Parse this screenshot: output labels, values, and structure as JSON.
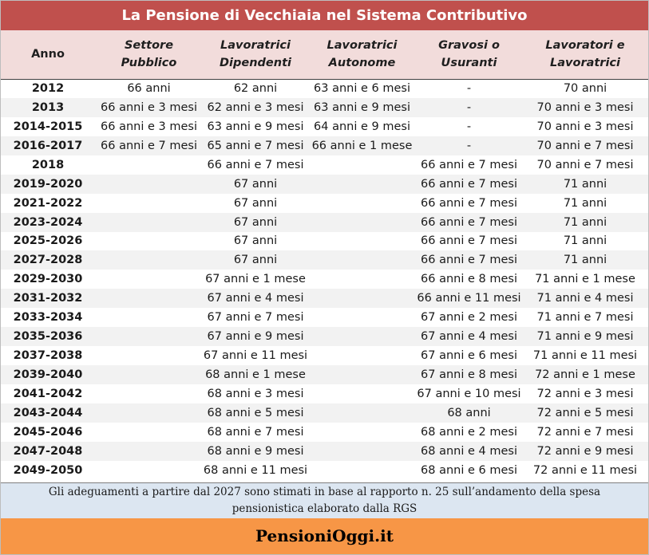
{
  "title": "La Pensione di Vecchiaia nel Sistema Contributivo",
  "columns": [
    {
      "line1": "Anno",
      "line2": ""
    },
    {
      "line1": "Settore",
      "line2": "Pubblico"
    },
    {
      "line1": "Lavoratrici",
      "line2": "Dipendenti"
    },
    {
      "line1": "Lavoratrici",
      "line2": "Autonome"
    },
    {
      "line1": "Gravosi o",
      "line2": "Usuranti"
    },
    {
      "line1": "Lavoratori e",
      "line2": "Lavoratrici"
    }
  ],
  "rows": [
    {
      "year": "2012",
      "cells": [
        {
          "text": "66 anni"
        },
        {
          "text": "62 anni"
        },
        {
          "text": "63 anni e 6 mesi"
        },
        {
          "text": "-"
        },
        {
          "text": "70 anni"
        }
      ]
    },
    {
      "year": "2013",
      "cells": [
        {
          "text": "66 anni e 3 mesi"
        },
        {
          "text": "62 anni e 3 mesi"
        },
        {
          "text": "63 anni e 9 mesi"
        },
        {
          "text": "-"
        },
        {
          "text": "70 anni e 3 mesi"
        }
      ]
    },
    {
      "year": "2014-2015",
      "cells": [
        {
          "text": "66 anni e 3 mesi"
        },
        {
          "text": "63 anni e 9 mesi"
        },
        {
          "text": "64 anni e 9 mesi"
        },
        {
          "text": "-"
        },
        {
          "text": "70 anni e 3 mesi"
        }
      ]
    },
    {
      "year": "2016-2017",
      "cells": [
        {
          "text": "66 anni e 7 mesi"
        },
        {
          "text": "65 anni e 7 mesi"
        },
        {
          "text": "66 anni e 1 mese"
        },
        {
          "text": "-"
        },
        {
          "text": "70 anni e 7 mesi"
        }
      ]
    },
    {
      "year": "2018",
      "cells": [
        {
          "text": "66 anni e 7 mesi",
          "span": 3
        },
        {
          "text": "66 anni e 7 mesi"
        },
        {
          "text": "70 anni e 7 mesi"
        }
      ]
    },
    {
      "year": "2019-2020",
      "cells": [
        {
          "text": "67 anni",
          "span": 3
        },
        {
          "text": "66 anni e 7 mesi"
        },
        {
          "text": "71 anni"
        }
      ]
    },
    {
      "year": "2021-2022",
      "cells": [
        {
          "text": "67 anni",
          "span": 3
        },
        {
          "text": "66 anni e 7 mesi"
        },
        {
          "text": "71 anni"
        }
      ]
    },
    {
      "year": "2023-2024",
      "cells": [
        {
          "text": "67 anni",
          "span": 3
        },
        {
          "text": "66 anni e 7 mesi"
        },
        {
          "text": "71 anni"
        }
      ]
    },
    {
      "year": "2025-2026",
      "cells": [
        {
          "text": "67 anni",
          "span": 3
        },
        {
          "text": "66 anni e 7 mesi"
        },
        {
          "text": "71 anni"
        }
      ]
    },
    {
      "year": "2027-2028",
      "cells": [
        {
          "text": "67 anni",
          "span": 3
        },
        {
          "text": "66 anni e 7 mesi"
        },
        {
          "text": "71 anni"
        }
      ]
    },
    {
      "year": "2029-2030",
      "cells": [
        {
          "text": "67 anni e 1 mese",
          "span": 3
        },
        {
          "text": "66 anni e 8 mesi"
        },
        {
          "text": "71 anni e 1 mese"
        }
      ]
    },
    {
      "year": "2031-2032",
      "cells": [
        {
          "text": "67 anni e 4 mesi",
          "span": 3
        },
        {
          "text": "66 anni e 11 mesi"
        },
        {
          "text": "71 anni e 4 mesi"
        }
      ]
    },
    {
      "year": "2033-2034",
      "cells": [
        {
          "text": "67 anni e 7 mesi",
          "span": 3
        },
        {
          "text": "67 anni e 2 mesi"
        },
        {
          "text": "71 anni e 7 mesi"
        }
      ]
    },
    {
      "year": "2035-2036",
      "cells": [
        {
          "text": "67 anni e 9 mesi",
          "span": 3
        },
        {
          "text": "67 anni e 4 mesi"
        },
        {
          "text": "71 anni e 9 mesi"
        }
      ]
    },
    {
      "year": "2037-2038",
      "cells": [
        {
          "text": "67 anni e 11 mesi",
          "span": 3
        },
        {
          "text": "67 anni e 6 mesi"
        },
        {
          "text": "71 anni e 11 mesi"
        }
      ]
    },
    {
      "year": "2039-2040",
      "cells": [
        {
          "text": "68 anni e 1 mese",
          "span": 3
        },
        {
          "text": "67 anni e 8 mesi"
        },
        {
          "text": "72 anni e 1 mese"
        }
      ]
    },
    {
      "year": "2041-2042",
      "cells": [
        {
          "text": "68 anni e 3 mesi",
          "span": 3
        },
        {
          "text": "67 anni e 10 mesi"
        },
        {
          "text": "72 anni e 3 mesi"
        }
      ]
    },
    {
      "year": "2043-2044",
      "cells": [
        {
          "text": "68 anni e 5 mesi",
          "span": 3
        },
        {
          "text": "68 anni"
        },
        {
          "text": "72 anni e 5 mesi"
        }
      ]
    },
    {
      "year": "2045-2046",
      "cells": [
        {
          "text": "68 anni e 7 mesi",
          "span": 3
        },
        {
          "text": "68 anni e 2 mesi"
        },
        {
          "text": "72 anni e 7 mesi"
        }
      ]
    },
    {
      "year": "2047-2048",
      "cells": [
        {
          "text": "68 anni e 9 mesi",
          "span": 3
        },
        {
          "text": "68 anni e 4 mesi"
        },
        {
          "text": "72 anni e 9 mesi"
        }
      ]
    },
    {
      "year": "2049-2050",
      "cells": [
        {
          "text": "68 anni e 11 mesi",
          "span": 3
        },
        {
          "text": "68 anni e 6 mesi"
        },
        {
          "text": "72 anni e 11 mesi"
        }
      ]
    }
  ],
  "note": {
    "line1": "Gli adeguamenti a partire dal 2027 sono stimati in base al rapporto n. 25 sull’andamento della spesa",
    "line2": "pensionistica elaborato dalla RGS"
  },
  "brand": "PensioniOggi.it",
  "colors": {
    "title_bg": "#c0504d",
    "header_bg": "#f2dcdb",
    "stripe_bg": "#f2f2f2",
    "note_bg": "#dce6f1",
    "brand_bg": "#f79646"
  }
}
